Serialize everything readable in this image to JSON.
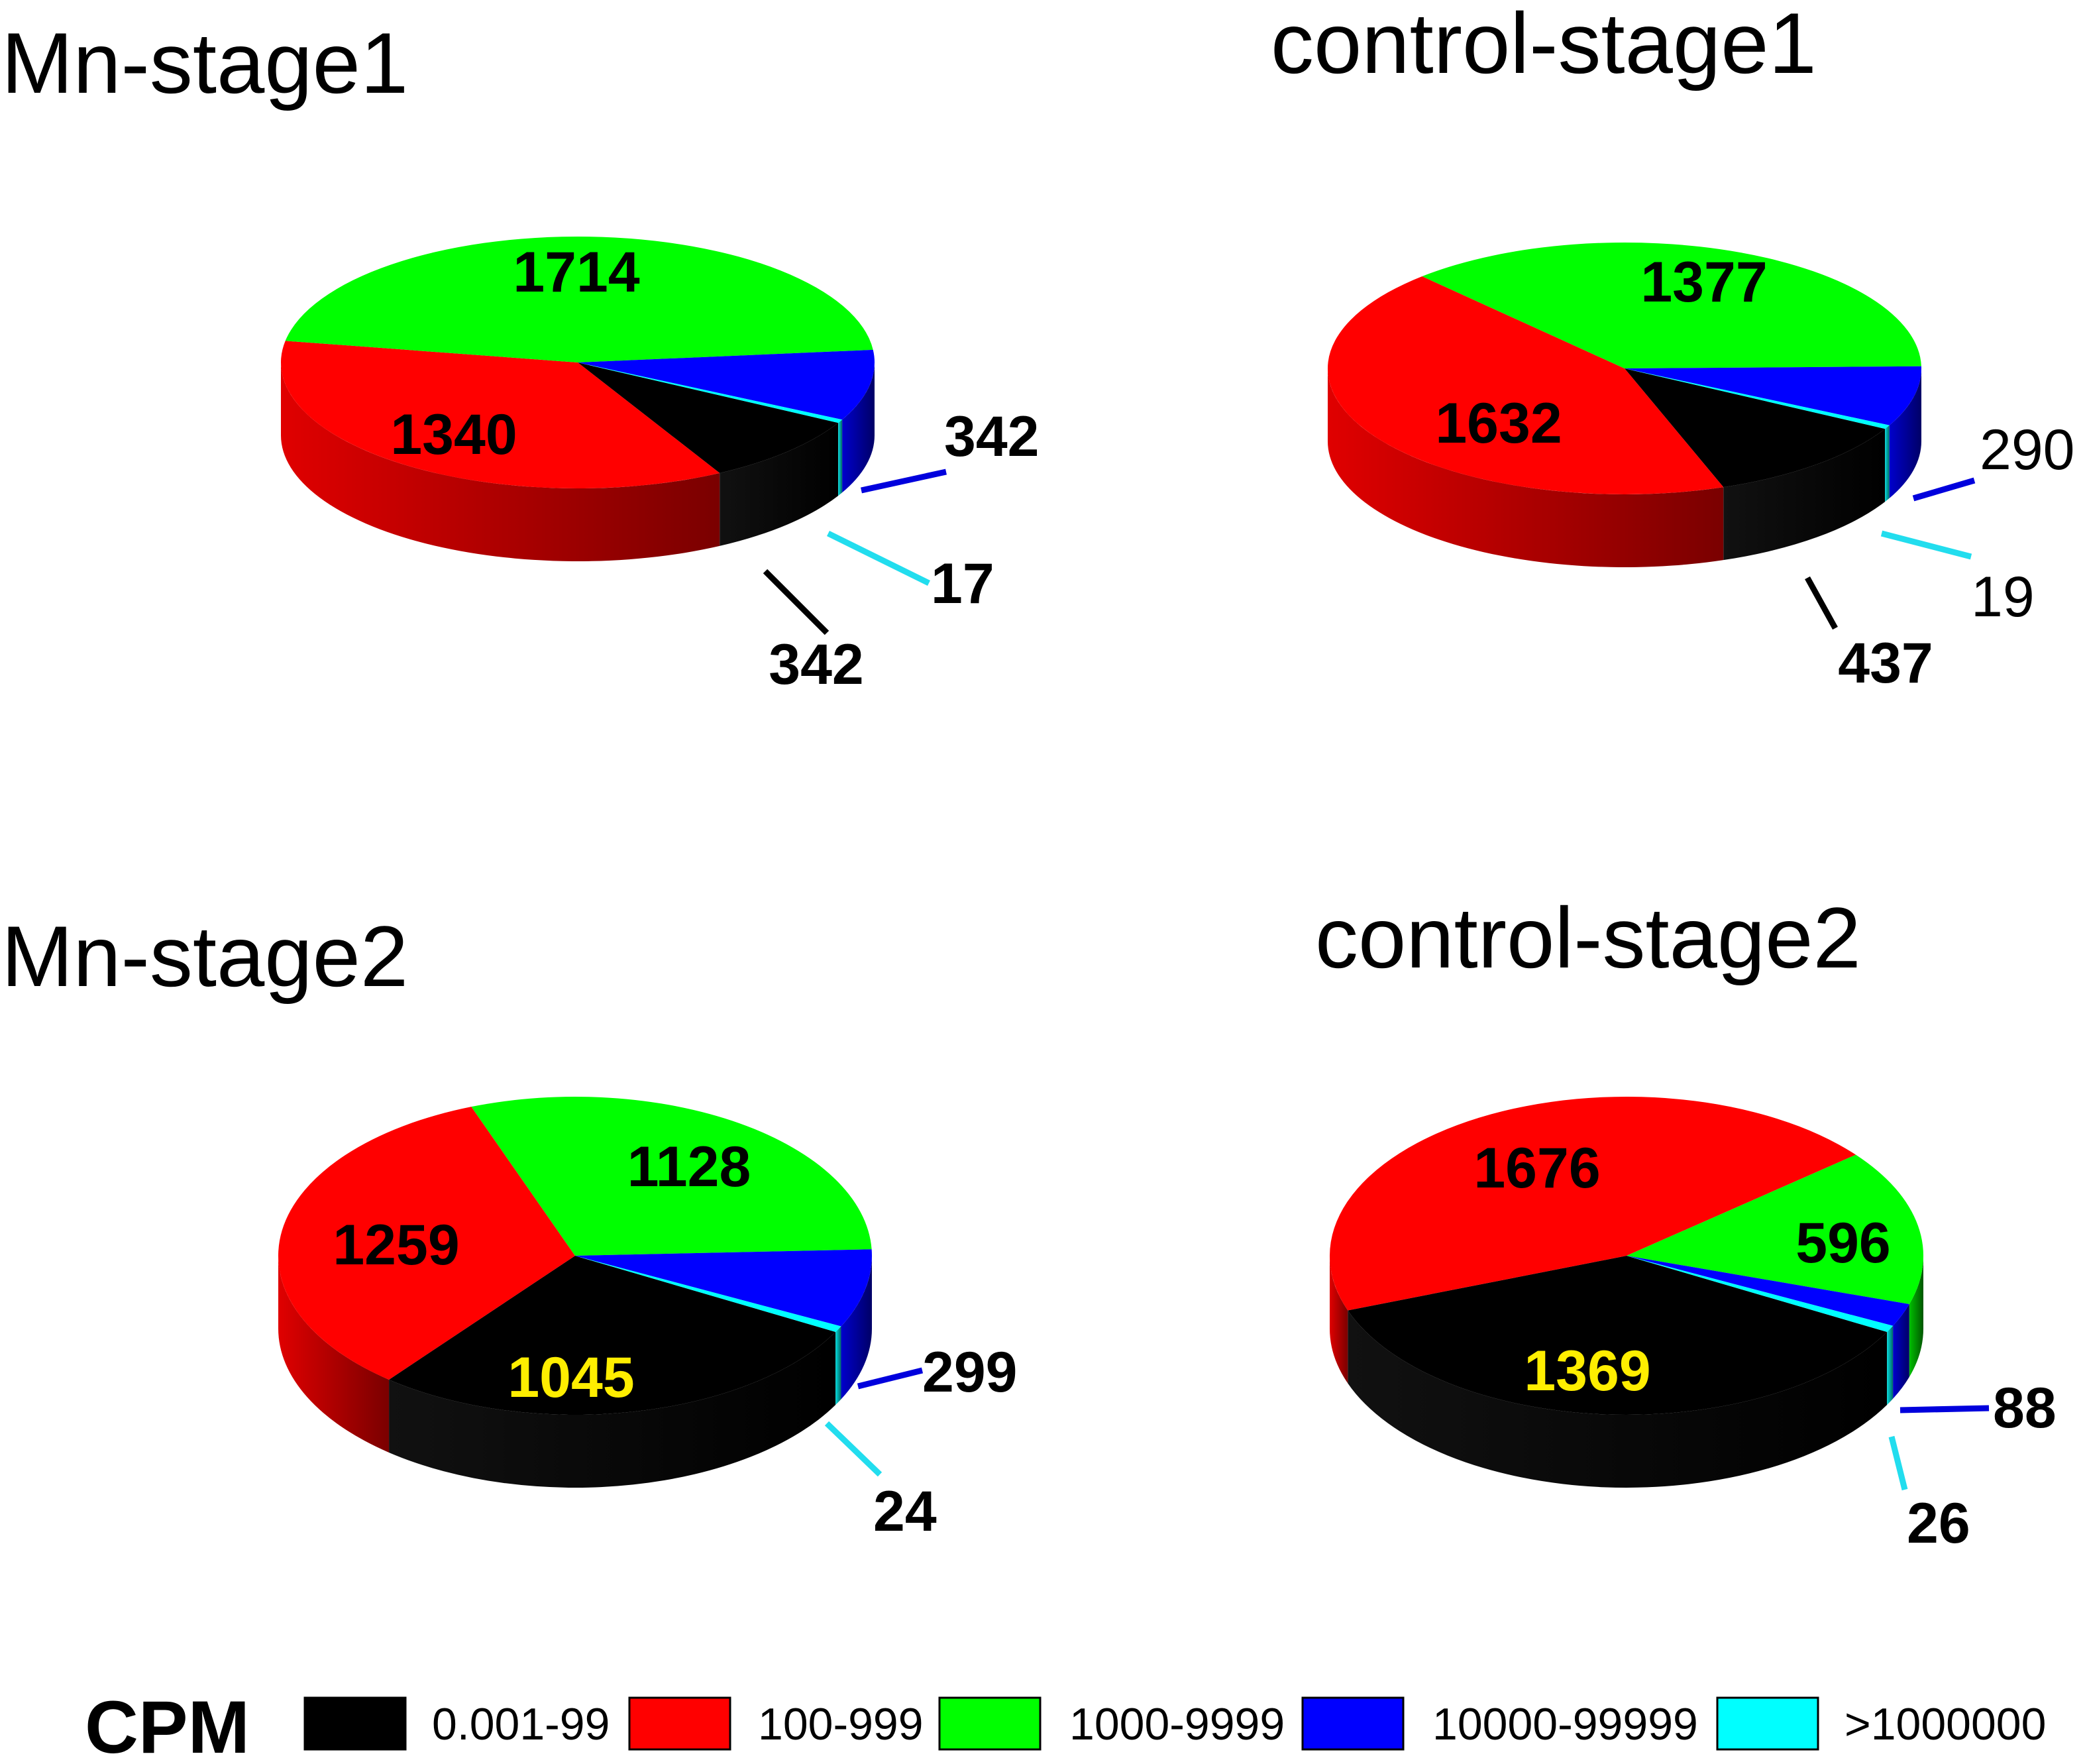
{
  "chart_data": [
    {
      "type": "pie",
      "title": "Mn-stage1",
      "categories": [
        "0.001-99",
        "100-999",
        "1000-9999",
        "10000-99999",
        ">1000000"
      ],
      "values": [
        342,
        1340,
        1714,
        342,
        17
      ],
      "labels": [
        "342",
        "1340",
        "1714",
        "342",
        "17"
      ]
    },
    {
      "type": "pie",
      "title": "control-stage1",
      "categories": [
        "0.001-99",
        "100-999",
        "1000-9999",
        "10000-99999",
        ">1000000"
      ],
      "values": [
        437,
        1632,
        1377,
        290,
        19
      ],
      "labels": [
        "437",
        "1632",
        "1377",
        "290",
        "19"
      ]
    },
    {
      "type": "pie",
      "title": "Mn-stage2",
      "categories": [
        "0.001-99",
        "100-999",
        "1000-9999",
        "10000-99999",
        ">1000000"
      ],
      "values": [
        1045,
        1259,
        1128,
        299,
        24
      ],
      "labels": [
        "1045",
        "1259",
        "1128",
        "299",
        "24"
      ]
    },
    {
      "type": "pie",
      "title": "control-stage2",
      "categories": [
        "0.001-99",
        "100-999",
        "1000-9999",
        "10000-99999",
        ">1000000"
      ],
      "values": [
        1369,
        1676,
        596,
        88,
        26
      ],
      "labels": [
        "1369",
        "1676",
        "596",
        "88",
        "26"
      ]
    }
  ],
  "legend": {
    "title": "CPM",
    "items": [
      {
        "label": "0.001-99",
        "color": "#000000"
      },
      {
        "label": "100-999",
        "color": "#ff0000"
      },
      {
        "label": "1000-9999",
        "color": "#00ff00"
      },
      {
        "label": "10000-99999",
        "color": "#0000ff"
      },
      {
        "label": ">1000000",
        "color": "#00ffff"
      }
    ]
  }
}
